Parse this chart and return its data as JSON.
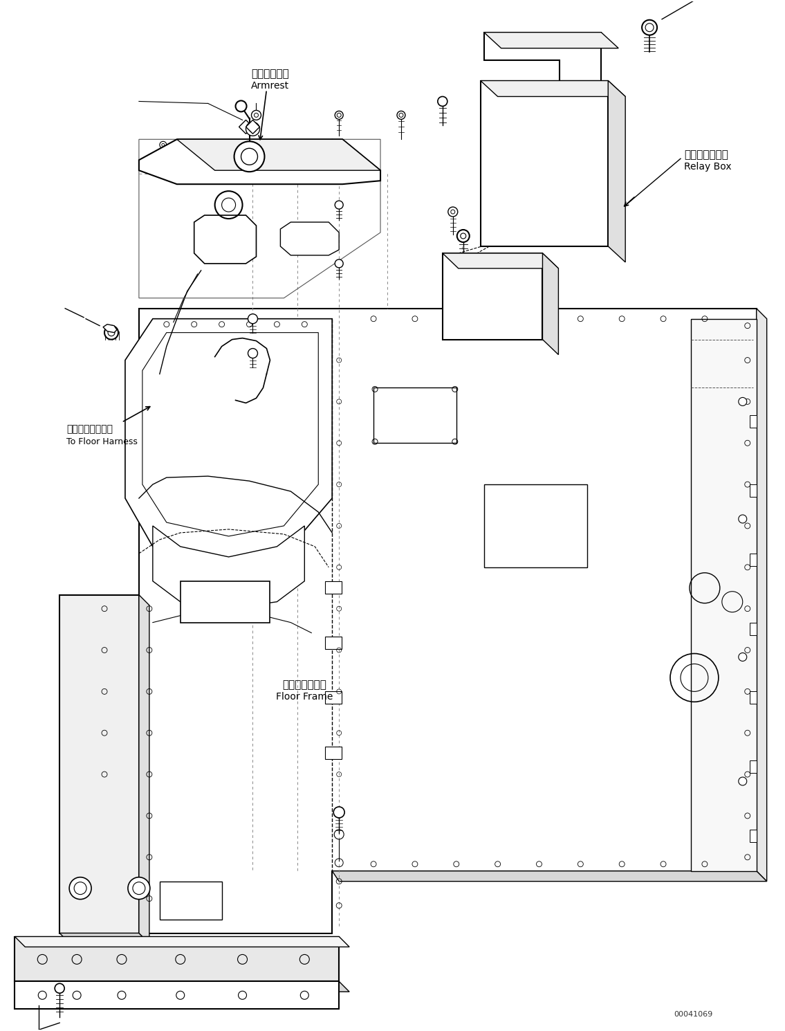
{
  "background_color": "#ffffff",
  "line_color": "#000000",
  "label_armrest_jp": "アームレスト",
  "label_armrest_en": "Armrest",
  "label_relay_jp": "リレーボックス",
  "label_relay_en": "Relay Box",
  "label_floor_jp": "フロアハーネスへ",
  "label_floor_en": "To Floor Harness",
  "label_frame_jp": "フロアフレーム",
  "label_frame_en": "Floor Frame",
  "doc_number": "00041069",
  "fig_width": 11.35,
  "fig_height": 14.9,
  "dpi": 100
}
